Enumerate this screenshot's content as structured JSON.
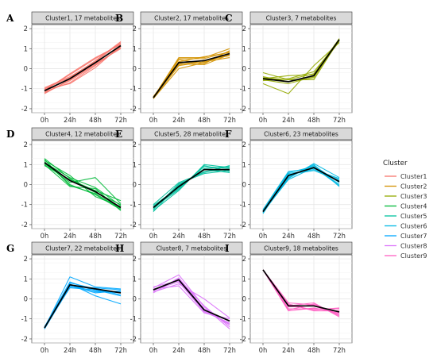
{
  "chart_data": {
    "type": "line",
    "x_categories": [
      "0h",
      "24h",
      "48h",
      "72h"
    ],
    "y_ticks": [
      -2,
      -1,
      0,
      1,
      2
    ],
    "ylim": [
      -2.2,
      2.2
    ],
    "grid": true,
    "legend": {
      "title": "Cluster",
      "placement": "right",
      "entries": [
        "Cluster1",
        "Cluster2",
        "Cluster3",
        "Cluster4",
        "Cluster5",
        "Cluster6",
        "Cluster7",
        "Cluster8",
        "Cluster9"
      ],
      "colors": [
        "#F8766D",
        "#D39200",
        "#93AA00",
        "#00BA38",
        "#00C19F",
        "#00B9E3",
        "#00A8FF",
        "#DB72FB",
        "#FF61C3"
      ]
    },
    "panels": [
      {
        "letter": "A",
        "title": "Cluster1, 17 metabolites",
        "color": "#F8766D",
        "mean": [
          -1.1,
          -0.5,
          0.3,
          1.15
        ],
        "lines": [
          [
            -1.0,
            -0.45,
            0.4,
            1.35
          ],
          [
            -1.2,
            -0.6,
            0.2,
            1.05
          ],
          [
            -1.05,
            -0.3,
            0.5,
            1.25
          ],
          [
            -1.15,
            -0.7,
            0.15,
            1.1
          ],
          [
            -0.95,
            -0.4,
            0.35,
            1.3
          ],
          [
            -1.25,
            -0.55,
            0.25,
            1.0
          ],
          [
            -1.1,
            -0.25,
            0.55,
            1.2
          ],
          [
            -1.05,
            -0.75,
            0.05,
            1.15
          ]
        ]
      },
      {
        "letter": "B",
        "title": "Cluster2, 17 metabolites",
        "color": "#D39200",
        "mean": [
          -1.45,
          0.3,
          0.4,
          0.75
        ],
        "lines": [
          [
            -1.45,
            0.55,
            0.55,
            1.0
          ],
          [
            -1.4,
            0.2,
            0.4,
            0.65
          ],
          [
            -1.5,
            0.0,
            0.3,
            0.75
          ],
          [
            -1.45,
            0.45,
            0.25,
            0.9
          ],
          [
            -1.4,
            0.35,
            0.6,
            0.8
          ],
          [
            -1.5,
            0.15,
            0.35,
            0.55
          ],
          [
            -1.45,
            0.5,
            0.5,
            0.85
          ],
          [
            -1.4,
            0.25,
            0.2,
            0.7
          ]
        ]
      },
      {
        "letter": "C",
        "title": "Cluster3, 7 metabolites",
        "color": "#93AA00",
        "mean": [
          -0.5,
          -0.65,
          -0.35,
          1.45
        ],
        "lines": [
          [
            -0.2,
            -0.55,
            -0.25,
            1.5
          ],
          [
            -0.75,
            -1.25,
            0.15,
            1.3
          ],
          [
            -0.45,
            -0.55,
            -0.55,
            1.45
          ],
          [
            -0.5,
            -0.35,
            -0.3,
            1.35
          ],
          [
            -0.55,
            -0.75,
            -0.4,
            1.5
          ],
          [
            -0.6,
            -0.5,
            -0.15,
            1.4
          ],
          [
            -0.4,
            -0.65,
            -0.45,
            1.45
          ]
        ]
      },
      {
        "letter": "D",
        "title": "Cluster4, 12 metabolites",
        "color": "#00BA38",
        "mean": [
          1.1,
          0.2,
          -0.35,
          -1.15
        ],
        "lines": [
          [
            1.3,
            0.3,
            -0.4,
            -1.0
          ],
          [
            1.0,
            -0.1,
            -0.2,
            -1.3
          ],
          [
            1.2,
            0.45,
            -0.6,
            -1.1
          ],
          [
            1.05,
            0.1,
            0.35,
            -0.95
          ],
          [
            1.15,
            0.0,
            -0.5,
            -1.25
          ],
          [
            0.95,
            0.25,
            -0.3,
            -0.8
          ],
          [
            1.25,
            -0.05,
            -0.45,
            -1.2
          ],
          [
            1.1,
            0.35,
            -0.15,
            -1.05
          ]
        ]
      },
      {
        "letter": "E",
        "title": "Cluster5, 28 metabolites",
        "color": "#00C19F",
        "mean": [
          -1.15,
          -0.1,
          0.75,
          0.75
        ],
        "lines": [
          [
            -1.3,
            -0.3,
            1.0,
            0.85
          ],
          [
            -1.0,
            0.1,
            0.6,
            0.95
          ],
          [
            -1.2,
            -0.05,
            0.75,
            0.6
          ],
          [
            -1.1,
            -0.2,
            0.9,
            0.8
          ],
          [
            -1.25,
            0.05,
            0.55,
            0.7
          ],
          [
            -1.05,
            -0.15,
            0.8,
            0.9
          ],
          [
            -1.35,
            0.0,
            0.65,
            0.75
          ],
          [
            -1.15,
            -0.25,
            0.95,
            0.65
          ]
        ]
      },
      {
        "letter": "F",
        "title": "Cluster6, 23 metabolites",
        "color": "#00B9E3",
        "mean": [
          -1.35,
          0.45,
          0.85,
          0.15
        ],
        "lines": [
          [
            -1.4,
            0.3,
            1.05,
            0.35
          ],
          [
            -1.3,
            0.6,
            0.9,
            0.0
          ],
          [
            -1.45,
            0.5,
            0.7,
            0.2
          ],
          [
            -1.35,
            0.35,
            1.0,
            -0.1
          ],
          [
            -1.25,
            0.65,
            0.8,
            0.25
          ],
          [
            -1.4,
            0.4,
            0.95,
            0.1
          ],
          [
            -1.3,
            0.55,
            0.75,
            0.3
          ],
          [
            -1.35,
            0.25,
            0.85,
            -0.05
          ]
        ]
      },
      {
        "letter": "G",
        "title": "Cluster7, 22 metabolites",
        "color": "#00A8FF",
        "mean": [
          -1.45,
          0.7,
          0.5,
          0.3
        ],
        "lines": [
          [
            -1.45,
            1.1,
            0.6,
            0.5
          ],
          [
            -1.4,
            0.85,
            0.4,
            0.3
          ],
          [
            -1.5,
            0.6,
            0.55,
            0.45
          ],
          [
            -1.45,
            0.75,
            0.15,
            -0.25
          ],
          [
            -1.4,
            0.55,
            0.45,
            0.15
          ],
          [
            -1.5,
            0.65,
            0.3,
            0.4
          ],
          [
            -1.45,
            0.8,
            0.5,
            0.2
          ],
          [
            -1.4,
            0.7,
            0.35,
            0.35
          ]
        ]
      },
      {
        "letter": "H",
        "title": "Cluster8, 7 metabolites",
        "color": "#DB72FB",
        "mean": [
          0.45,
          0.95,
          -0.55,
          -1.1
        ],
        "lines": [
          [
            0.55,
            1.2,
            -0.4,
            -1.5
          ],
          [
            0.35,
            0.75,
            0.0,
            -0.95
          ],
          [
            0.45,
            0.85,
            -0.65,
            -1.2
          ],
          [
            0.3,
            1.05,
            -0.5,
            -1.3
          ],
          [
            0.5,
            0.65,
            -0.7,
            -1.0
          ],
          [
            0.4,
            1.0,
            -0.35,
            -1.4
          ],
          [
            0.6,
            0.9,
            -0.6,
            -1.25
          ]
        ]
      },
      {
        "letter": "I",
        "title": "Cluster9, 18 metabolites",
        "color": "#FF61C3",
        "mean": [
          1.45,
          -0.35,
          -0.35,
          -0.65
        ],
        "lines": [
          [
            1.45,
            -0.2,
            -0.3,
            -0.8
          ],
          [
            1.45,
            -0.5,
            -0.5,
            -0.5
          ],
          [
            1.45,
            -0.35,
            -0.2,
            -0.9
          ],
          [
            1.45,
            -0.6,
            -0.45,
            -0.7
          ],
          [
            1.45,
            -0.25,
            -0.6,
            -0.6
          ],
          [
            1.45,
            -0.4,
            -0.35,
            -0.75
          ],
          [
            1.45,
            -0.55,
            -0.25,
            -0.85
          ],
          [
            1.45,
            -0.3,
            -0.55,
            -0.45
          ]
        ]
      }
    ]
  }
}
